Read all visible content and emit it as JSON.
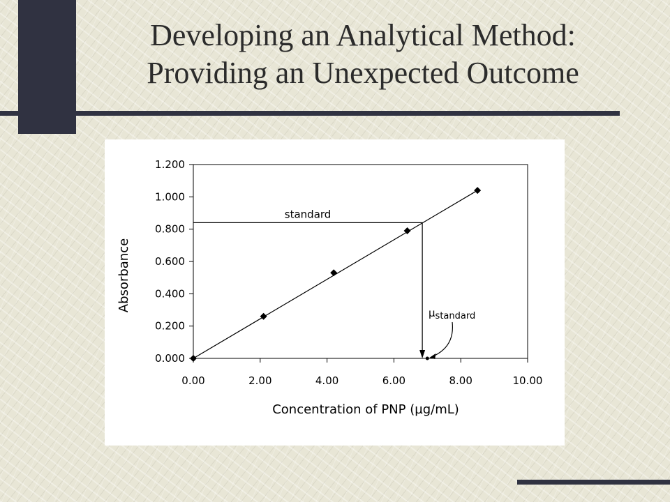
{
  "slide": {
    "title_line1": "Developing an Analytical Method:",
    "title_line2": "Providing an Unexpected Outcome"
  },
  "chart_data": {
    "type": "scatter",
    "title": "",
    "xlabel": "Concentration of PNP (µg/mL)",
    "ylabel": "Absorbance",
    "xlim": [
      0,
      10
    ],
    "ylim": [
      0,
      1.2
    ],
    "x_ticks": [
      "0.00",
      "2.00",
      "4.00",
      "6.00",
      "8.00",
      "10.00"
    ],
    "y_ticks": [
      "0.000",
      "0.200",
      "0.400",
      "0.600",
      "0.800",
      "1.000",
      "1.200"
    ],
    "grid": false,
    "series": [
      {
        "x": [
          0.0,
          2.1,
          4.2,
          6.4,
          8.5
        ],
        "y": [
          0.0,
          0.26,
          0.53,
          0.79,
          1.04
        ],
        "marker": "diamond",
        "trendline": true
      }
    ],
    "fit_line": {
      "x": [
        0.0,
        8.5
      ],
      "y": [
        0.0,
        1.04
      ]
    },
    "standard": {
      "label": "standard",
      "absorbance": 0.84,
      "concentration": 6.85
    },
    "mu_standard": {
      "symbol": "µ",
      "subscript": "standard",
      "concentration": 7.0
    },
    "line_color": "#000000",
    "marker_color": "#000000"
  }
}
